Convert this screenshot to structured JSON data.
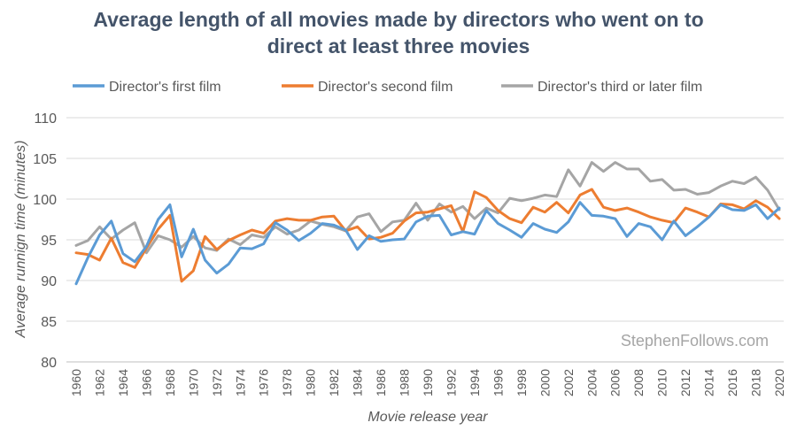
{
  "chart_data": {
    "type": "line",
    "title": "Average length of all movies made by directors who went on to direct at least three movies",
    "title_lines": [
      "Average length of all movies made by directors who went on to",
      "direct at least three movies"
    ],
    "xlabel": "Movie release year",
    "ylabel": "Average runnign time (minutes)",
    "ylim": [
      80,
      110
    ],
    "y_ticks": [
      80,
      85,
      90,
      95,
      100,
      105,
      110
    ],
    "x": [
      1960,
      1961,
      1962,
      1963,
      1964,
      1965,
      1966,
      1967,
      1968,
      1969,
      1970,
      1971,
      1972,
      1973,
      1974,
      1975,
      1976,
      1977,
      1978,
      1979,
      1980,
      1981,
      1982,
      1983,
      1984,
      1985,
      1986,
      1987,
      1988,
      1989,
      1990,
      1991,
      1992,
      1993,
      1994,
      1995,
      1996,
      1997,
      1998,
      1999,
      2000,
      2001,
      2002,
      2003,
      2004,
      2005,
      2006,
      2007,
      2008,
      2009,
      2010,
      2011,
      2012,
      2013,
      2014,
      2015,
      2016,
      2017,
      2018,
      2019,
      2020
    ],
    "x_tick_labels": [
      "1960",
      "1962",
      "1964",
      "1966",
      "1968",
      "1970",
      "1972",
      "1974",
      "1976",
      "1978",
      "1980",
      "1982",
      "1984",
      "1986",
      "1988",
      "1990",
      "1992",
      "1994",
      "1996",
      "1998",
      "2000",
      "2002",
      "2004",
      "2006",
      "2008",
      "2010",
      "2012",
      "2014",
      "2016",
      "2018",
      "2020"
    ],
    "grid": "horizontal",
    "legend_position": "top",
    "series": [
      {
        "name": "Director's first film",
        "color": "#5B9BD5",
        "values": [
          89.6,
          92.8,
          95.6,
          97.3,
          93.3,
          92.3,
          94.2,
          97.5,
          99.3,
          92.9,
          96.3,
          92.5,
          90.9,
          92.0,
          94.0,
          93.9,
          94.5,
          97.1,
          96.2,
          94.9,
          95.8,
          97.0,
          96.8,
          96.2,
          93.8,
          95.5,
          94.8,
          95.0,
          95.1,
          97.2,
          97.9,
          98.0,
          95.6,
          96.0,
          95.7,
          98.6,
          97.0,
          96.2,
          95.3,
          97.0,
          96.3,
          95.9,
          97.2,
          99.6,
          98.0,
          97.9,
          97.6,
          95.4,
          97.0,
          96.6,
          95.0,
          97.3,
          95.5,
          96.6,
          97.8,
          99.3,
          98.7,
          98.6,
          99.3,
          97.6,
          98.9
        ]
      },
      {
        "name": "Director's second film",
        "color": "#ED7D31",
        "values": [
          93.4,
          93.2,
          92.5,
          95.2,
          92.2,
          91.6,
          94.0,
          96.3,
          98.0,
          89.9,
          91.2,
          95.4,
          93.8,
          94.9,
          95.6,
          96.2,
          95.8,
          97.3,
          97.6,
          97.4,
          97.4,
          97.8,
          97.9,
          96.1,
          96.6,
          95.1,
          95.3,
          95.8,
          97.3,
          98.3,
          98.4,
          98.8,
          99.2,
          96.0,
          100.9,
          100.2,
          98.6,
          97.6,
          97.1,
          99.0,
          98.4,
          99.6,
          98.3,
          100.5,
          101.2,
          99.0,
          98.6,
          98.9,
          98.4,
          97.8,
          97.4,
          97.1,
          98.9,
          98.4,
          97.8,
          99.4,
          99.3,
          98.8,
          99.8,
          99.0,
          97.6
        ]
      },
      {
        "name": "Director's third or later film",
        "color": "#A5A5A5",
        "values": [
          94.3,
          94.9,
          96.6,
          95.1,
          96.2,
          97.1,
          93.4,
          95.5,
          95.0,
          94.1,
          95.4,
          94.0,
          93.7,
          95.1,
          94.4,
          95.6,
          95.3,
          96.6,
          95.7,
          96.2,
          97.3,
          96.9,
          96.6,
          96.1,
          97.8,
          98.2,
          96.0,
          97.2,
          97.4,
          99.5,
          97.4,
          99.4,
          98.4,
          99.1,
          97.6,
          98.9,
          98.3,
          100.1,
          99.8,
          100.1,
          100.5,
          100.3,
          103.6,
          101.6,
          104.5,
          103.4,
          104.5,
          103.7,
          103.7,
          102.2,
          102.4,
          101.1,
          101.2,
          100.6,
          100.8,
          101.6,
          102.2,
          101.9,
          102.7,
          101.1,
          98.7
        ]
      }
    ]
  },
  "watermark": "StephenFollows.com"
}
